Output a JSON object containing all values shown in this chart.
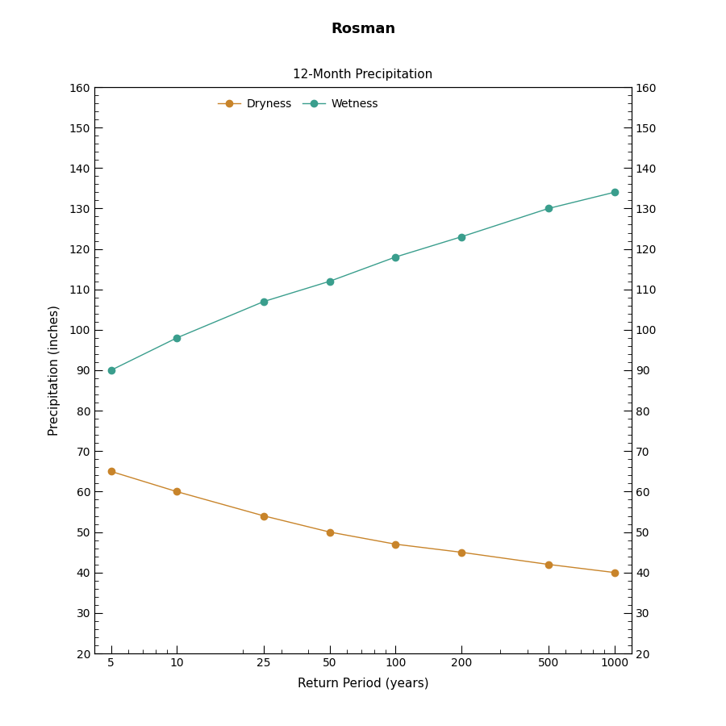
{
  "title": "Rosman",
  "subtitle": "12-Month Precipitation",
  "xlabel": "Return Period (years)",
  "ylabel": "Precipitation (inches)",
  "x_values": [
    5,
    10,
    25,
    50,
    100,
    200,
    500,
    1000
  ],
  "wetness_values": [
    90,
    98,
    107,
    112,
    118,
    123,
    130,
    134
  ],
  "dryness_values": [
    65,
    60,
    54,
    50,
    47,
    45,
    42,
    40
  ],
  "wetness_color": "#3a9e8d",
  "dryness_color": "#c8842a",
  "ylim": [
    20,
    160
  ],
  "yticks": [
    20,
    30,
    40,
    50,
    60,
    70,
    80,
    90,
    100,
    110,
    120,
    130,
    140,
    150,
    160
  ],
  "background_color": "#ffffff",
  "plot_bg_color": "#ffffff",
  "title_fontsize": 13,
  "subtitle_fontsize": 11,
  "label_fontsize": 11,
  "tick_fontsize": 10,
  "legend_fontsize": 10,
  "line_width": 1.0,
  "marker_size": 6
}
